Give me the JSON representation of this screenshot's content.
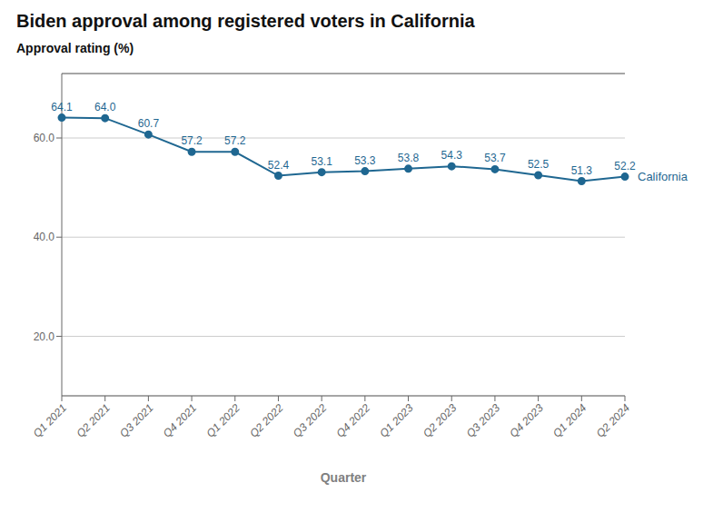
{
  "chart_data": {
    "type": "line",
    "title": "Biden approval among registered voters in California",
    "ylabel": "Approval rating (%)",
    "xlabel": "Quarter",
    "categories": [
      "Q1 2021",
      "Q2 2021",
      "Q3 2021",
      "Q4 2021",
      "Q1 2022",
      "Q2 2022",
      "Q3 2022",
      "Q4 2022",
      "Q1 2023",
      "Q2 2023",
      "Q3 2023",
      "Q4 2023",
      "Q1 2024",
      "Q2 2024"
    ],
    "values": [
      64.1,
      64.0,
      60.7,
      57.2,
      57.2,
      52.4,
      53.1,
      53.3,
      53.8,
      54.3,
      53.7,
      52.5,
      51.3,
      52.2
    ],
    "value_labels": [
      "64.1",
      "64.0",
      "60.7",
      "57.2",
      "57.2",
      "52.4",
      "53.1",
      "53.3",
      "53.8",
      "54.3",
      "53.7",
      "52.5",
      "51.3",
      "52.2"
    ],
    "data_labels": true,
    "color": "#1f6791",
    "marker": "circle",
    "ylim": [
      8,
      73
    ],
    "yticks": [
      {
        "value": 20,
        "label": "20.0"
      },
      {
        "value": 40,
        "label": "40.0"
      },
      {
        "value": 60,
        "label": "60.0"
      }
    ],
    "grid": true,
    "annotations": [
      {
        "text": "California"
      }
    ]
  }
}
